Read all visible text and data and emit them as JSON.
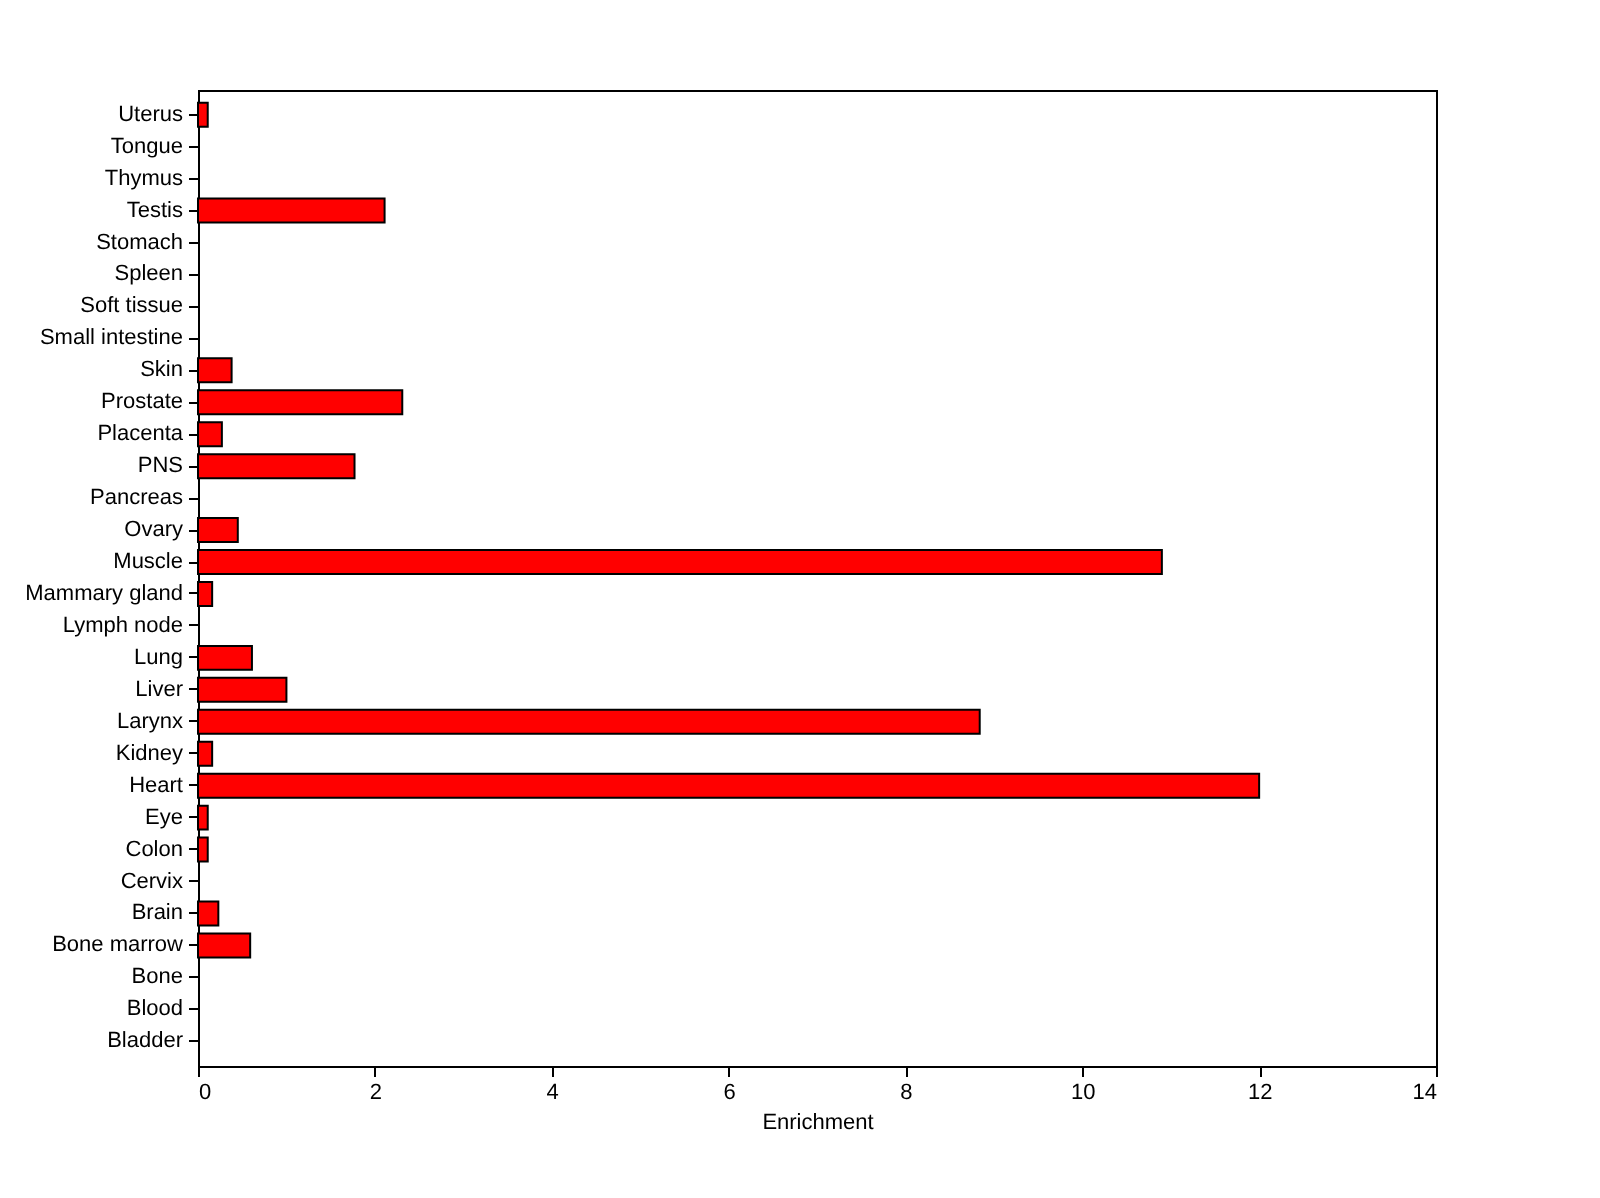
{
  "chart_data": {
    "type": "bar",
    "orientation": "horizontal",
    "xlabel": "Enrichment",
    "categories": [
      "Uterus",
      "Tongue",
      "Thymus",
      "Testis",
      "Stomach",
      "Spleen",
      "Soft tissue",
      "Small intestine",
      "Skin",
      "Prostate",
      "Placenta",
      "PNS",
      "Pancreas",
      "Ovary",
      "Muscle",
      "Mammary gland",
      "Lymph node",
      "Lung",
      "Liver",
      "Larynx",
      "Kidney",
      "Heart",
      "Eye",
      "Colon",
      "Cervix",
      "Brain",
      "Bone marrow",
      "Bone",
      "Blood",
      "Bladder"
    ],
    "values": [
      0.11,
      null,
      null,
      2.11,
      null,
      null,
      null,
      null,
      0.38,
      2.31,
      0.27,
      1.77,
      null,
      0.45,
      10.9,
      0.16,
      null,
      0.61,
      1.0,
      8.84,
      0.16,
      12.0,
      0.11,
      0.11,
      null,
      0.23,
      0.59,
      null,
      null,
      null
    ],
    "color": "#ff0000",
    "xlim": [
      0,
      14
    ],
    "xticks": [
      0,
      2,
      4,
      6,
      8,
      10,
      12,
      14
    ],
    "grid": false
  }
}
